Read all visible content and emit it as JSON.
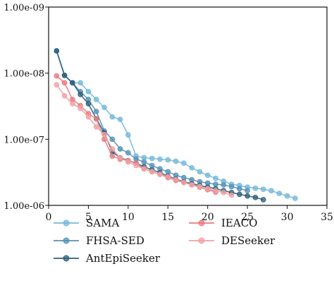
{
  "chart_data": {
    "type": "line",
    "title": "",
    "xlabel": "",
    "ylabel": "",
    "xlim": [
      0,
      35
    ],
    "ylim": [
      1e-09,
      1e-06
    ],
    "y_scale": "log",
    "y_inverted": true,
    "xticks": [
      {
        "value": 0,
        "label": "0"
      },
      {
        "value": 5,
        "label": "5"
      },
      {
        "value": 10,
        "label": "10"
      },
      {
        "value": 15,
        "label": "15"
      },
      {
        "value": 20,
        "label": "20"
      },
      {
        "value": 25,
        "label": "25"
      },
      {
        "value": 30,
        "label": "30"
      },
      {
        "value": 35,
        "label": "35"
      }
    ],
    "yticks": [
      {
        "value": 1e-09,
        "label": "1.00e-09"
      },
      {
        "value": 1e-08,
        "label": "1.00e-08"
      },
      {
        "value": 1e-07,
        "label": "1.00e-07"
      },
      {
        "value": 1e-06,
        "label": "1.00e-06"
      }
    ],
    "legend_position": "bottom",
    "series": [
      {
        "name": "SAMA",
        "color": "#74b8dc",
        "x": [
          1,
          2,
          3,
          4,
          5,
          6,
          7,
          8,
          9,
          10,
          11,
          12,
          13,
          14,
          15,
          16,
          17,
          18,
          19,
          20,
          21,
          22,
          23,
          24,
          25,
          26,
          27,
          28,
          29,
          30,
          31
        ],
        "y": [
          4.6e-09,
          1.08e-08,
          1.4e-08,
          1.4e-08,
          1.9e-08,
          2.5e-08,
          3.3e-08,
          4.6e-08,
          5e-08,
          8.6e-08,
          1.8e-07,
          1.9e-07,
          1.95e-07,
          2e-07,
          2.05e-07,
          2.15e-07,
          2.3e-07,
          2.7e-07,
          3.1e-07,
          3.5e-07,
          3.9e-07,
          4.3e-07,
          4.8e-07,
          5e-07,
          5.3e-07,
          5.5e-07,
          5.7e-07,
          6e-07,
          6.6e-07,
          7.2e-07,
          7.8e-07
        ]
      },
      {
        "name": "FHSA-SED",
        "color": "#5590b8",
        "x": [
          1,
          2,
          3,
          4,
          5,
          6,
          7,
          8,
          9,
          10,
          11,
          12,
          13,
          14,
          15,
          16,
          17,
          18,
          19,
          20,
          21,
          22,
          23,
          24,
          25
        ],
        "y": [
          4.6e-09,
          1.08e-08,
          1.4e-08,
          1.9e-08,
          2.5e-08,
          3.8e-08,
          7.5e-08,
          1e-07,
          1.4e-07,
          1.6e-07,
          2e-07,
          2.2e-07,
          2.5e-07,
          2.8e-07,
          3.1e-07,
          3.5e-07,
          3.8e-07,
          4.1e-07,
          4.4e-07,
          4.6e-07,
          4.8e-07,
          4.9e-07,
          5.2e-07,
          5.6e-07,
          6e-07
        ]
      },
      {
        "name": "AntEpiSeeker",
        "color": "#2c5f7c",
        "x": [
          1,
          2,
          3,
          4,
          5,
          6,
          7,
          8,
          9,
          10,
          11,
          12,
          13,
          14,
          15,
          16,
          17,
          18,
          19,
          20,
          21,
          22,
          23,
          24,
          25,
          26,
          27
        ],
        "y": [
          4.6e-09,
          1.08e-08,
          1.4e-08,
          2.1e-08,
          2.9e-08,
          4.9e-08,
          8e-08,
          1.55e-07,
          1.9e-07,
          2.1e-07,
          2.3e-07,
          2.6e-07,
          2.9e-07,
          3.2e-07,
          3.6e-07,
          4e-07,
          4.4e-07,
          4.7e-07,
          5e-07,
          5.3e-07,
          5.6e-07,
          6e-07,
          6.4e-07,
          6.8e-07,
          7.2e-07,
          7.6e-07,
          8.2e-07
        ]
      },
      {
        "name": "IEACO",
        "color": "#e87a7e",
        "x": [
          1,
          2,
          3,
          4,
          5,
          6,
          7,
          8,
          9,
          10,
          11,
          12,
          13,
          14,
          15,
          16,
          17,
          18,
          19,
          20,
          21
        ],
        "y": [
          1.1e-08,
          1.4e-08,
          2.5e-08,
          3.1e-08,
          4.1e-08,
          4.9e-08,
          1e-07,
          1.8e-07,
          2e-07,
          2.1e-07,
          2.3e-07,
          2.8e-07,
          3.1e-07,
          3.4e-07,
          3.8e-07,
          4.2e-07,
          4.5e-07,
          4.9e-07,
          5.3e-07,
          5.8e-07,
          6.3e-07
        ]
      },
      {
        "name": "DESeeker",
        "color": "#f0a0a4",
        "x": [
          1,
          2,
          3,
          4,
          5,
          6,
          7,
          8,
          9,
          10,
          11,
          12,
          13,
          14,
          15,
          16,
          17,
          18,
          19,
          20,
          21,
          22,
          23
        ],
        "y": [
          1.5e-08,
          2.2e-08,
          2.9e-08,
          3.4e-08,
          4.6e-08,
          6.5e-08,
          8.5e-08,
          1.4e-07,
          1.9e-07,
          2.2e-07,
          2.5e-07,
          2.8e-07,
          3.1e-07,
          3.4e-07,
          3.7e-07,
          4.1e-07,
          4.5e-07,
          4.9e-07,
          5.2e-07,
          5.6e-07,
          6e-07,
          6.4e-07,
          7e-07
        ]
      }
    ],
    "legend": [
      {
        "name": "SAMA",
        "color": "#74b8dc"
      },
      {
        "name": "FHSA-SED",
        "color": "#5590b8"
      },
      {
        "name": "AntEpiSeeker",
        "color": "#2c5f7c"
      },
      {
        "name": "IEACO",
        "color": "#e87a7e"
      },
      {
        "name": "DESeeker",
        "color": "#f0a0a4"
      }
    ]
  }
}
